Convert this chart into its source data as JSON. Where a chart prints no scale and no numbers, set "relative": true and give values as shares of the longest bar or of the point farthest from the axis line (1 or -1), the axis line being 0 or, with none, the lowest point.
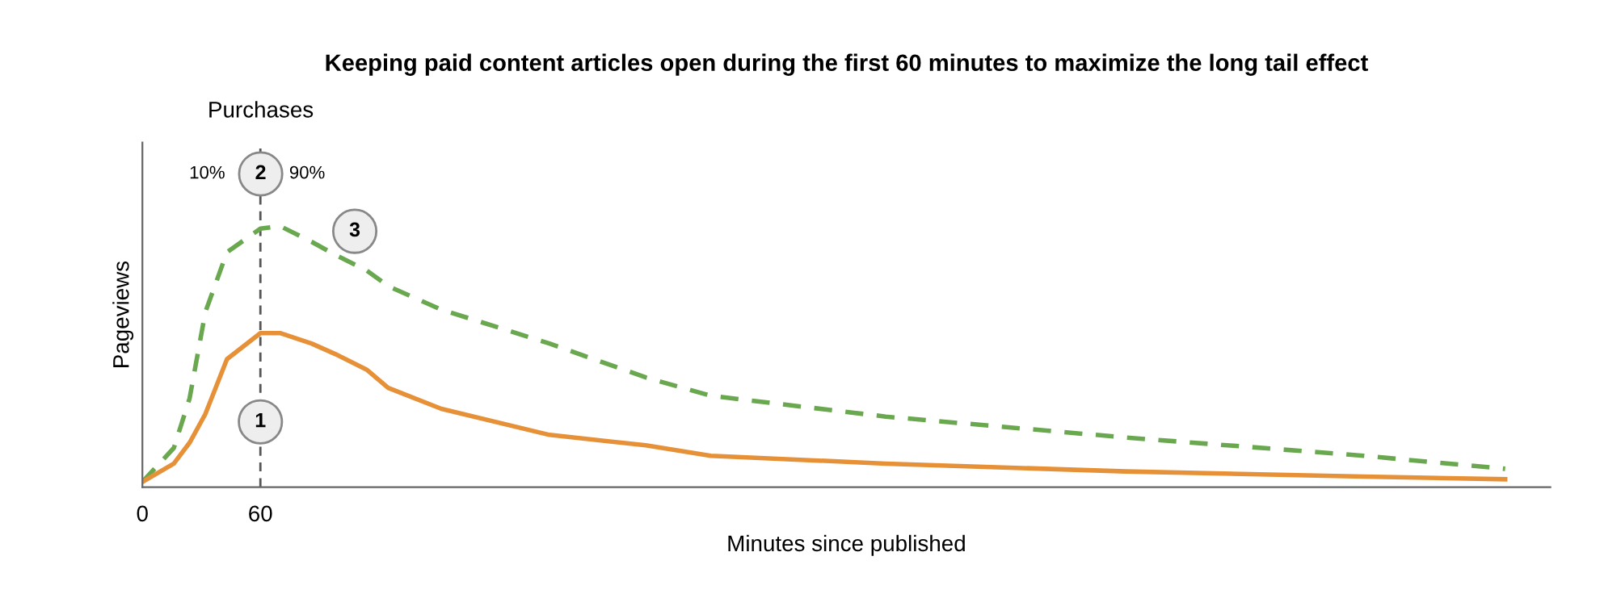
{
  "chart_data": {
    "type": "line",
    "title": "Keeping paid content articles open during the first 60 minutes to maximize the long tail effect",
    "xlabel": "Minutes since published",
    "ylabel": "Pageviews",
    "relative": true,
    "xlim": [
      0,
      716
    ],
    "xticks": [
      0,
      60
    ],
    "grid": false,
    "legend": false,
    "marker": "none",
    "x": [
      0,
      16,
      24,
      32,
      43,
      60,
      70,
      86,
      98,
      114,
      125,
      152,
      207,
      256,
      289,
      378,
      500,
      621,
      693
    ],
    "series": [
      {
        "color": "#6aa84f",
        "line_style": "dashed",
        "values": [
          0.02,
          0.15,
          0.34,
          0.67,
          0.9,
          0.99,
          1.0,
          0.94,
          0.89,
          0.83,
          0.77,
          0.68,
          0.55,
          0.42,
          0.35,
          0.27,
          0.19,
          0.12,
          0.07
        ]
      },
      {
        "color": "#e69138",
        "line_style": "solid",
        "values": [
          0.02,
          0.09,
          0.17,
          0.28,
          0.49,
          0.59,
          0.59,
          0.55,
          0.51,
          0.45,
          0.38,
          0.3,
          0.2,
          0.16,
          0.12,
          0.09,
          0.06,
          0.04,
          0.03
        ]
      }
    ],
    "ref_lines": [
      {
        "axis": "x",
        "value": 60,
        "label": null,
        "color": "#555555",
        "line_style": "dashed"
      }
    ],
    "annotations": [
      "Purchases",
      "10%",
      "2",
      "90%",
      {
        "text": "3",
        "x": 108,
        "y": 0.98
      },
      {
        "text": "1",
        "x": 60,
        "y": 0.25
      }
    ]
  }
}
